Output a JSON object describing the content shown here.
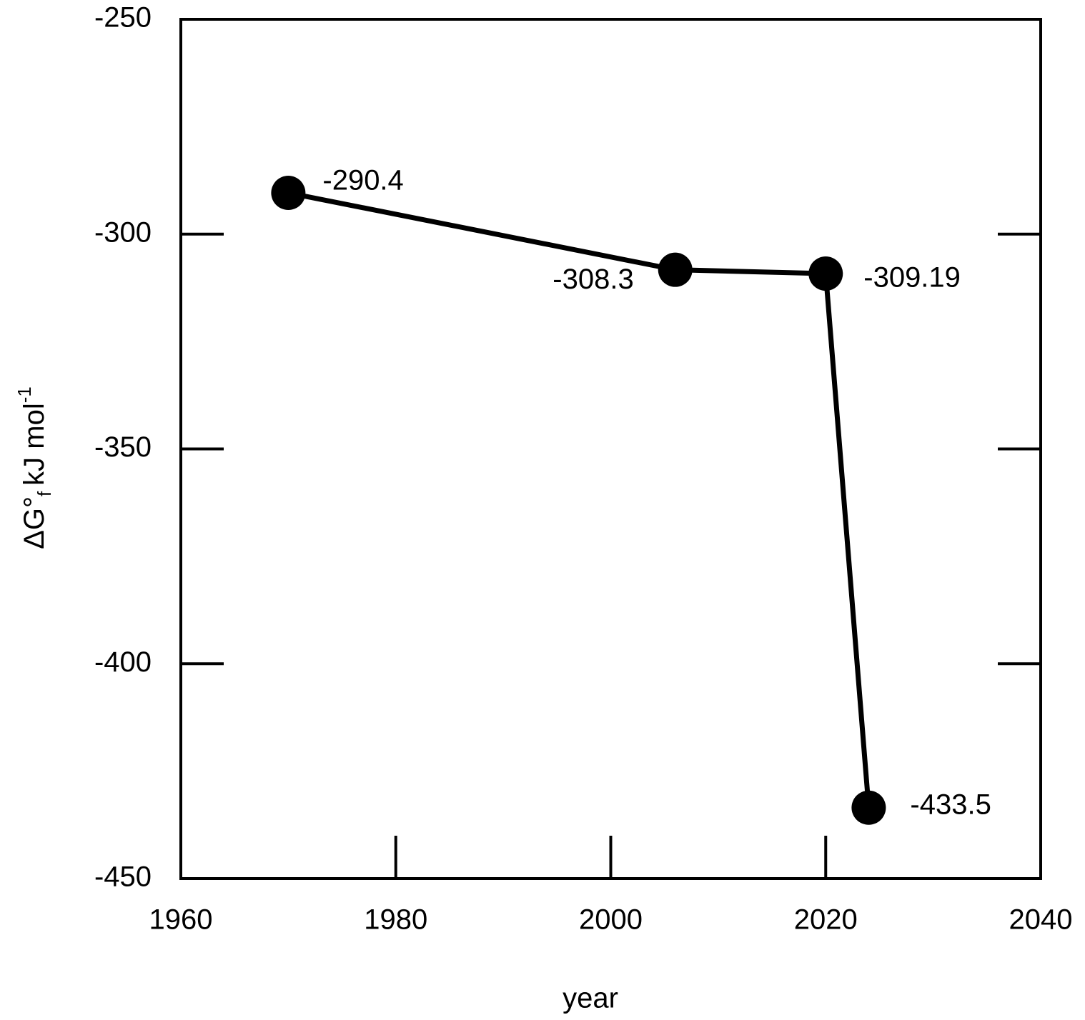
{
  "chart_data": {
    "type": "line",
    "x_label": "year",
    "y_label": {
      "symbol": "ΔG",
      "degree": "°",
      "sub": "f",
      "unit": "kJ mol",
      "sup": "-1"
    },
    "x": [
      1970,
      2006,
      2020,
      2024
    ],
    "series": [
      {
        "color": "#000000",
        "values": [
          -290.4,
          -308.3,
          -309.19,
          -433.5
        ]
      }
    ],
    "xlim": [
      1960,
      2040
    ],
    "xticks": [
      1960,
      1980,
      2000,
      2020,
      2040
    ],
    "ylim": [
      -450,
      -250
    ],
    "yticks": [
      -250,
      -300,
      -350,
      -400,
      -450
    ],
    "grid": false
  }
}
